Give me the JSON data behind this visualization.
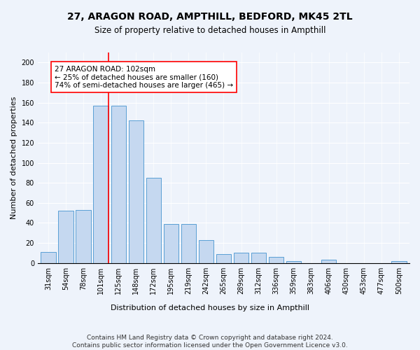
{
  "title1": "27, ARAGON ROAD, AMPTHILL, BEDFORD, MK45 2TL",
  "title2": "Size of property relative to detached houses in Ampthill",
  "xlabel": "Distribution of detached houses by size in Ampthill",
  "ylabel": "Number of detached properties",
  "categories": [
    "31sqm",
    "54sqm",
    "78sqm",
    "101sqm",
    "125sqm",
    "148sqm",
    "172sqm",
    "195sqm",
    "219sqm",
    "242sqm",
    "265sqm",
    "289sqm",
    "312sqm",
    "336sqm",
    "359sqm",
    "383sqm",
    "406sqm",
    "430sqm",
    "453sqm",
    "477sqm",
    "500sqm"
  ],
  "values": [
    11,
    52,
    53,
    157,
    157,
    142,
    85,
    39,
    39,
    23,
    9,
    10,
    10,
    6,
    2,
    0,
    3,
    0,
    0,
    0,
    2
  ],
  "bar_color": "#c5d8f0",
  "bar_edge_color": "#5a9fd4",
  "red_line_x": 3.43,
  "annotation_text": "27 ARAGON ROAD: 102sqm\n← 25% of detached houses are smaller (160)\n74% of semi-detached houses are larger (465) →",
  "annotation_box_color": "white",
  "annotation_box_edge_color": "red",
  "ylim": [
    0,
    210
  ],
  "yticks": [
    0,
    20,
    40,
    60,
    80,
    100,
    120,
    140,
    160,
    180,
    200
  ],
  "footer1": "Contains HM Land Registry data © Crown copyright and database right 2024.",
  "footer2": "Contains public sector information licensed under the Open Government Licence v3.0.",
  "background_color": "#eef3fb",
  "plot_bg_color": "#eef3fb",
  "title1_fontsize": 10,
  "title2_fontsize": 8.5,
  "xlabel_fontsize": 8,
  "ylabel_fontsize": 8,
  "tick_fontsize": 7,
  "annotation_fontsize": 7.5,
  "footer_fontsize": 6.5
}
